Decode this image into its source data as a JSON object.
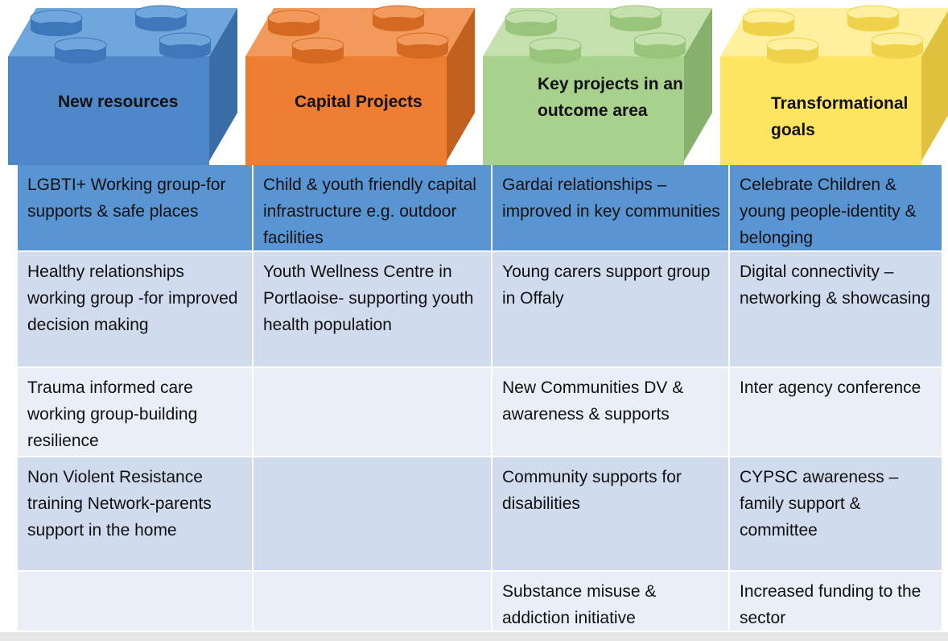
{
  "bricks": [
    "New resources",
    "Capital Projects",
    "Key projects in an outcome area",
    "Transformational goals"
  ],
  "table": {
    "rows": [
      [
        "LGBTI+ Working group-for supports & safe places",
        "Child & youth friendly capital infrastructure e.g. outdoor facilities",
        "Gardai relationships – improved in key communities",
        "Celebrate Children & young people-identity & belonging"
      ],
      [
        "Healthy relationships working group -for improved decision making",
        "Youth Wellness Centre in Portlaoise- supporting youth health population",
        "Young carers support group in Offaly",
        "Digital connectivity – networking & showcasing"
      ],
      [
        "Trauma informed care working group-building resilience",
        null,
        "New Communities DV & awareness & supports",
        "Inter agency conference"
      ],
      [
        "Non Violent Resistance training  Network-parents support in the home",
        null,
        "Community supports for disabilities",
        "CYPSC awareness – family support & committee"
      ],
      [
        null,
        null,
        "Substance misuse & addiction initiative",
        "Increased funding to the sector"
      ]
    ]
  }
}
